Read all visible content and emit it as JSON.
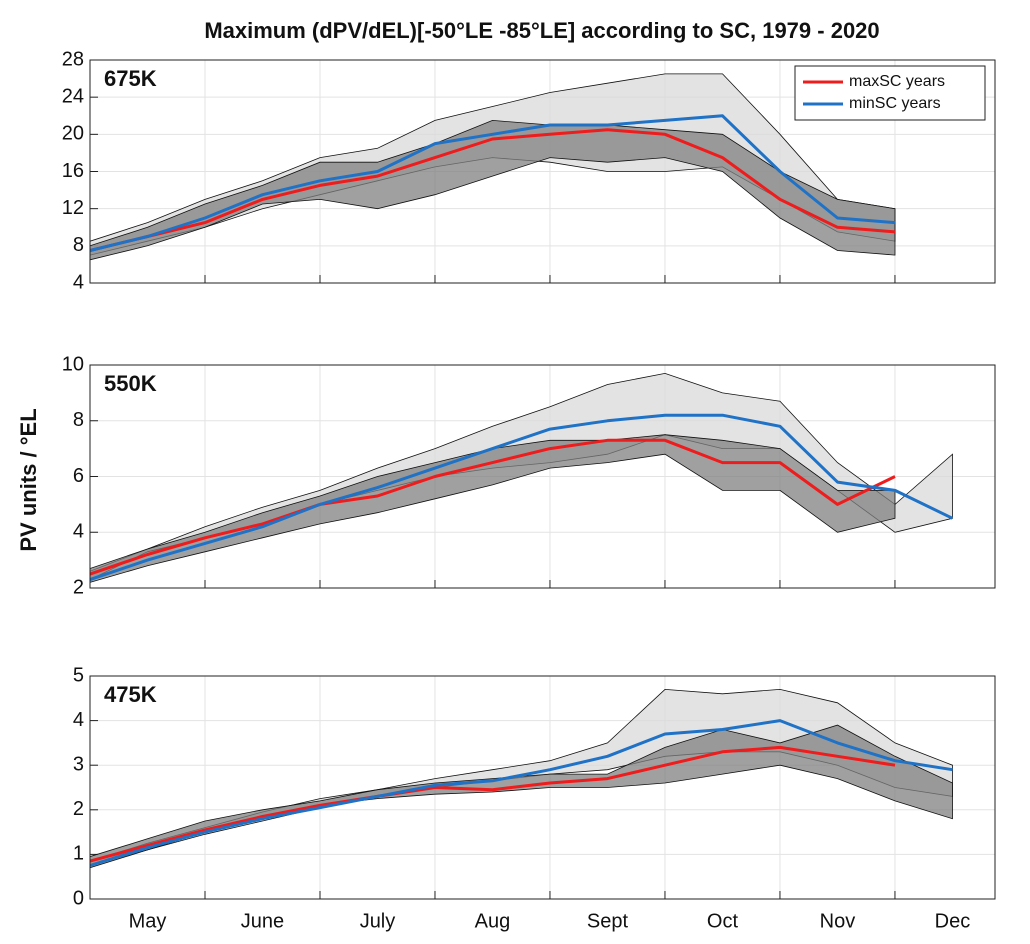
{
  "title": "Maximum (dPV/dEL)[-50°LE -85°LE] according to SC, 1979 - 2020",
  "ylabel": "PV units / °EL",
  "chart_data": [
    {
      "type": "line",
      "panel_label": "675K",
      "legend": "upper right",
      "grid": true,
      "x": [
        0,
        0.5,
        1,
        1.5,
        2,
        2.5,
        3,
        3.5,
        4,
        4.5,
        5,
        5.5,
        6,
        6.5,
        7,
        7.5
      ],
      "xlim": [
        0,
        7.87
      ],
      "ylim": [
        4,
        28
      ],
      "yticks": [
        4,
        8,
        12,
        16,
        20,
        24,
        28
      ],
      "bands": [
        {
          "color": "#d9d9d9",
          "low": [
            7,
            8.5,
            10,
            12,
            13.5,
            15,
            16.5,
            17.5,
            17,
            16,
            16,
            16.5,
            13,
            9.5,
            8.5,
            null
          ],
          "high": [
            8.5,
            10.5,
            13,
            15,
            17.5,
            18.5,
            21.5,
            23,
            24.5,
            25.5,
            26.5,
            26.5,
            20,
            13,
            12,
            null
          ]
        },
        {
          "color": "#808080",
          "low": [
            6.5,
            8,
            10,
            12.5,
            13,
            12,
            13.5,
            15.5,
            17.5,
            17,
            17.5,
            16,
            11,
            7.5,
            7,
            null
          ],
          "high": [
            8,
            10,
            12.5,
            14.5,
            17,
            17,
            19,
            21.5,
            21,
            21,
            20.5,
            20,
            16,
            13,
            12,
            null
          ]
        }
      ],
      "series": [
        {
          "name": "maxSC years",
          "color": "#ee1c1c",
          "values": [
            7.5,
            9,
            10.5,
            13,
            14.5,
            15.5,
            17.5,
            19.5,
            20,
            20.5,
            20,
            17.5,
            13,
            10,
            9.5,
            null
          ]
        },
        {
          "name": "minSC years",
          "color": "#1f72c6",
          "values": [
            7.5,
            9,
            11,
            13.5,
            15,
            16,
            19,
            20,
            21,
            21,
            21.5,
            22,
            16,
            11,
            10.5,
            null
          ]
        }
      ]
    },
    {
      "type": "line",
      "panel_label": "550K",
      "grid": true,
      "x": [
        0,
        0.5,
        1,
        1.5,
        2,
        2.5,
        3,
        3.5,
        4,
        4.5,
        5,
        5.5,
        6,
        6.5,
        7,
        7.5
      ],
      "xlim": [
        0,
        7.87
      ],
      "ylim": [
        2,
        10
      ],
      "yticks": [
        2,
        4,
        6,
        8,
        10
      ],
      "bands": [
        {
          "color": "#d9d9d9",
          "low": [
            2.3,
            3.3,
            3.8,
            4.3,
            5,
            5.5,
            6,
            6.3,
            6.5,
            6.8,
            7.5,
            7,
            7,
            5.5,
            4,
            4.5
          ],
          "high": [
            2.6,
            3.4,
            4.2,
            4.9,
            5.5,
            6.3,
            7,
            7.8,
            8.5,
            9.3,
            9.7,
            9,
            8.7,
            6.5,
            5,
            6.8
          ]
        },
        {
          "color": "#808080",
          "low": [
            2.2,
            2.8,
            3.3,
            3.8,
            4.3,
            4.7,
            5.2,
            5.7,
            6.3,
            6.5,
            6.8,
            5.5,
            5.5,
            4,
            4.5,
            null
          ],
          "high": [
            2.7,
            3.4,
            4,
            4.7,
            5.3,
            6,
            6.5,
            7,
            7.3,
            7.3,
            7.5,
            7.3,
            7,
            5.5,
            5.5,
            null
          ]
        }
      ],
      "series": [
        {
          "color": "#ee1c1c",
          "values": [
            2.5,
            3.2,
            3.8,
            4.3,
            5,
            5.3,
            6,
            6.5,
            7,
            7.3,
            7.3,
            6.5,
            6.5,
            5,
            6,
            null
          ]
        },
        {
          "color": "#1f72c6",
          "values": [
            2.3,
            3,
            3.6,
            4.2,
            5,
            5.6,
            6.3,
            7,
            7.7,
            8,
            8.2,
            8.2,
            7.8,
            5.8,
            5.5,
            4.5
          ]
        }
      ]
    },
    {
      "type": "line",
      "panel_label": "475K",
      "grid": true,
      "categories": [
        "May",
        "June",
        "July",
        "Aug",
        "Sept",
        "Oct",
        "Nov",
        "Dec"
      ],
      "x": [
        0,
        0.5,
        1,
        1.5,
        2,
        2.5,
        3,
        3.5,
        4,
        4.5,
        5,
        5.5,
        6,
        6.5,
        7,
        7.5
      ],
      "xlim": [
        0,
        7.87
      ],
      "ylim": [
        0,
        5
      ],
      "yticks": [
        0,
        1,
        2,
        3,
        4,
        5
      ],
      "bands": [
        {
          "color": "#d9d9d9",
          "low": [
            0.75,
            1.1,
            1.45,
            1.75,
            2.05,
            2.3,
            2.5,
            2.65,
            2.8,
            2.9,
            3.2,
            3.3,
            3.3,
            3,
            2.5,
            2.3
          ],
          "high": [
            0.85,
            1.25,
            1.6,
            1.95,
            2.25,
            2.45,
            2.7,
            2.9,
            3.1,
            3.5,
            4.7,
            4.6,
            4.7,
            4.4,
            3.5,
            3
          ]
        },
        {
          "color": "#808080",
          "low": [
            0.7,
            1.1,
            1.5,
            1.85,
            2.1,
            2.25,
            2.35,
            2.4,
            2.5,
            2.5,
            2.6,
            2.8,
            3,
            2.7,
            2.2,
            1.8
          ],
          "high": [
            0.95,
            1.35,
            1.75,
            2,
            2.2,
            2.45,
            2.6,
            2.7,
            2.8,
            2.8,
            3.4,
            3.8,
            3.5,
            3.9,
            3.2,
            2.6
          ]
        }
      ],
      "series": [
        {
          "color": "#ee1c1c",
          "values": [
            0.85,
            1.2,
            1.55,
            1.85,
            2.1,
            2.3,
            2.5,
            2.45,
            2.6,
            2.7,
            3,
            3.3,
            3.4,
            3.2,
            3,
            null
          ]
        },
        {
          "color": "#1f72c6",
          "values": [
            0.75,
            1.15,
            1.5,
            1.8,
            2.05,
            2.3,
            2.55,
            2.65,
            2.9,
            3.2,
            3.7,
            3.8,
            4,
            3.5,
            3.1,
            2.9
          ]
        }
      ]
    }
  ]
}
